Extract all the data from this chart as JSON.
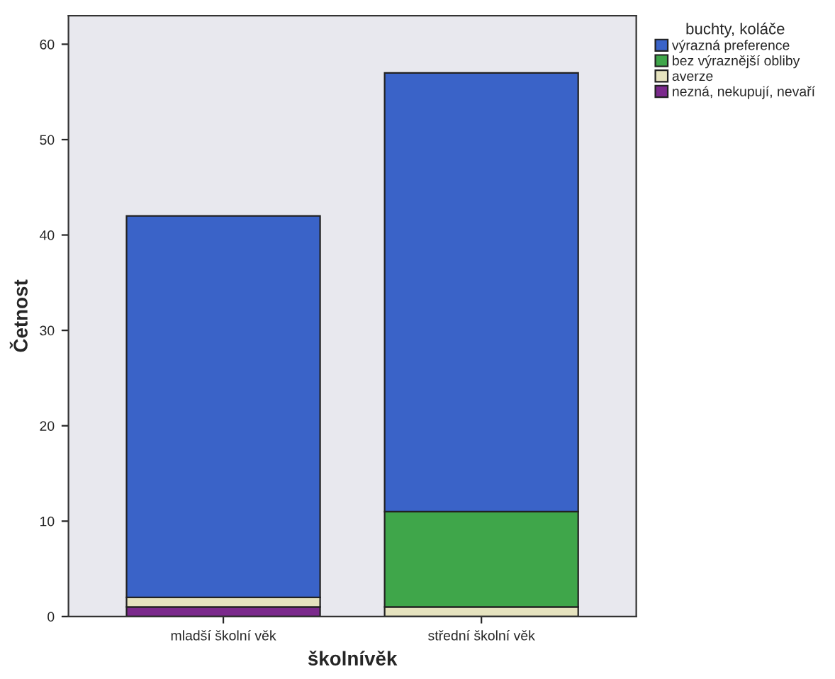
{
  "chart_data": {
    "type": "bar",
    "stacked": true,
    "xlabel": "školnívěk",
    "ylabel": "Četnost",
    "legend_title": "buchty, koláče",
    "legend": "top right",
    "categories": [
      "mladší školní věk",
      "střední školní věk"
    ],
    "series": [
      {
        "name": "nezná, nekupují, nevaří",
        "color": "#7b2a8c",
        "values": [
          1,
          0
        ]
      },
      {
        "name": "averze",
        "color": "#e6e3bf",
        "values": [
          1,
          1
        ]
      },
      {
        "name": "bez výraznější obliby",
        "color": "#3fa64a",
        "values": [
          0,
          10
        ]
      },
      {
        "name": "výrazná preference",
        "color": "#3a63c8",
        "values": [
          40,
          46
        ]
      }
    ],
    "ylim": [
      0,
      63
    ],
    "yticks": [
      0,
      10,
      20,
      30,
      40,
      50,
      60
    ],
    "grid": false
  }
}
